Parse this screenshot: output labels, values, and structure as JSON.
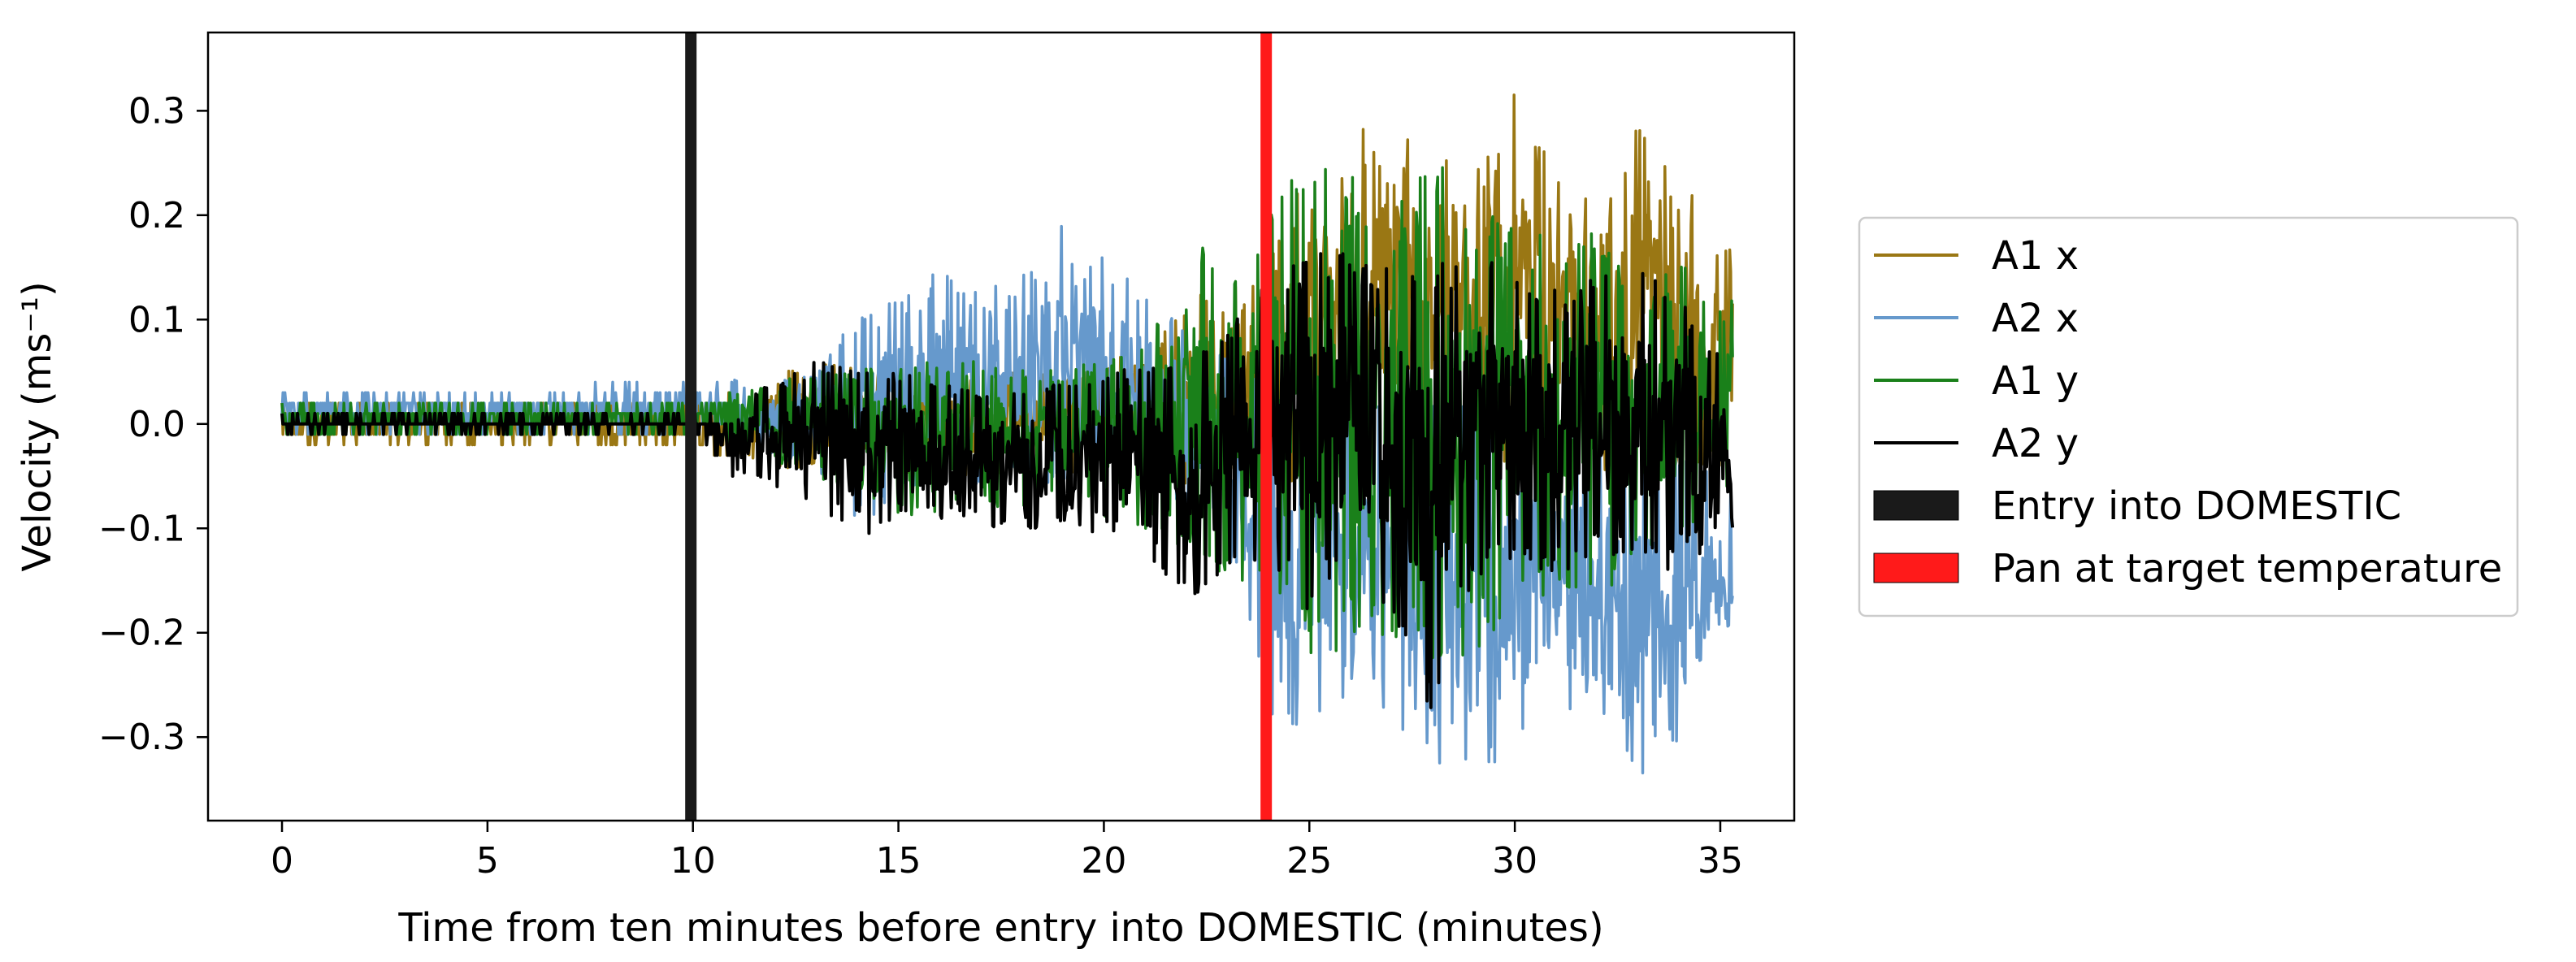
{
  "chart_data": {
    "type": "line",
    "xlabel": "Time from ten minutes before entry into DOMESTIC (minutes)",
    "ylabel": "Velocity (ms⁻¹)",
    "xlim": [
      -1.8,
      36.8
    ],
    "ylim": [
      -0.38,
      0.375
    ],
    "xticks": [
      0,
      5,
      10,
      15,
      20,
      25,
      30,
      35
    ],
    "yticks": [
      -0.3,
      -0.2,
      -0.1,
      0.0,
      0.1,
      0.2,
      0.3
    ],
    "xtick_labels": [
      "0",
      "5",
      "10",
      "15",
      "20",
      "25",
      "30",
      "35"
    ],
    "ytick_labels": [
      "−0.3",
      "−0.2",
      "−0.1",
      "0.0",
      "0.1",
      "0.2",
      "0.3"
    ],
    "grid": false,
    "legend_position": "right-outside",
    "x_end": 35.3,
    "series": [
      {
        "name": "A1 x",
        "color": "#9a7714",
        "envelope": {
          "x": [
            0,
            10,
            13,
            15,
            17,
            19,
            21,
            22,
            24,
            25,
            26,
            27,
            28,
            29,
            30,
            31,
            32,
            33,
            34,
            35.3
          ],
          "high": [
            0.02,
            0.02,
            0.06,
            0.05,
            0.05,
            0.05,
            0.07,
            0.12,
            0.15,
            0.26,
            0.28,
            0.3,
            0.25,
            0.26,
            0.34,
            0.24,
            0.26,
            0.29,
            0.24,
            0.17
          ],
          "low": [
            -0.02,
            -0.02,
            -0.05,
            -0.05,
            -0.05,
            -0.05,
            -0.07,
            -0.06,
            -0.05,
            -0.08,
            -0.06,
            -0.04,
            -0.04,
            -0.05,
            -0.04,
            -0.04,
            -0.05,
            -0.04,
            -0.04,
            -0.04
          ]
        }
      },
      {
        "name": "A2 x",
        "color": "#6699cc",
        "envelope": {
          "x": [
            0,
            10,
            13,
            14,
            15,
            16,
            17,
            18,
            19,
            20,
            21,
            22,
            23,
            24,
            25,
            26,
            27,
            28,
            29,
            30,
            31,
            32,
            33,
            34,
            35.3
          ],
          "high": [
            0.03,
            0.04,
            0.05,
            0.11,
            0.12,
            0.15,
            0.13,
            0.14,
            0.2,
            0.16,
            0.13,
            0.09,
            0.07,
            0.05,
            0.03,
            0.02,
            0.02,
            0.02,
            0.02,
            0.01,
            0.0,
            0.0,
            -0.02,
            -0.04,
            -0.08
          ],
          "low": [
            -0.01,
            -0.01,
            -0.04,
            -0.1,
            -0.07,
            -0.06,
            -0.06,
            -0.05,
            -0.06,
            -0.05,
            -0.06,
            -0.08,
            -0.12,
            -0.28,
            -0.3,
            -0.28,
            -0.3,
            -0.33,
            -0.35,
            -0.3,
            -0.3,
            -0.32,
            -0.35,
            -0.32,
            -0.22
          ]
        }
      },
      {
        "name": "A1 y",
        "color": "#1a801a",
        "envelope": {
          "x": [
            0,
            10,
            13,
            15,
            17,
            19,
            21,
            22,
            23,
            24,
            25,
            26,
            27,
            28,
            29,
            30,
            31,
            32,
            33,
            34,
            35.3
          ],
          "high": [
            0.02,
            0.02,
            0.05,
            0.06,
            0.06,
            0.05,
            0.08,
            0.18,
            0.17,
            0.21,
            0.26,
            0.24,
            0.21,
            0.26,
            0.21,
            0.2,
            0.18,
            0.2,
            0.13,
            0.16,
            0.12
          ],
          "low": [
            -0.01,
            -0.01,
            -0.05,
            -0.09,
            -0.08,
            -0.08,
            -0.1,
            -0.12,
            -0.15,
            -0.16,
            -0.24,
            -0.22,
            -0.2,
            -0.25,
            -0.22,
            -0.2,
            -0.15,
            -0.18,
            -0.12,
            -0.12,
            -0.07
          ]
        }
      },
      {
        "name": "A2 y",
        "color": "#000000",
        "envelope": {
          "x": [
            0,
            10,
            11,
            13,
            14,
            15,
            17,
            19,
            21,
            22,
            23,
            24,
            25,
            26,
            27,
            28,
            29,
            30,
            31,
            32,
            33,
            34,
            35.3
          ],
          "high": [
            0.01,
            0.01,
            0.02,
            0.06,
            0.06,
            0.05,
            0.03,
            0.04,
            0.06,
            0.05,
            0.1,
            0.16,
            0.16,
            0.18,
            0.16,
            0.15,
            0.17,
            0.14,
            0.13,
            0.14,
            0.15,
            0.12,
            0.05
          ],
          "low": [
            -0.01,
            -0.01,
            -0.05,
            -0.08,
            -0.11,
            -0.1,
            -0.1,
            -0.1,
            -0.12,
            -0.19,
            -0.14,
            -0.13,
            -0.18,
            -0.16,
            -0.18,
            -0.28,
            -0.15,
            -0.13,
            -0.15,
            -0.12,
            -0.14,
            -0.14,
            -0.1
          ]
        }
      }
    ],
    "vlines": [
      {
        "name": "Entry into DOMESTIC",
        "x": 9.95,
        "color": "#1a1a1a"
      },
      {
        "name": "Pan at target temperature",
        "x": 23.95,
        "color": "#ff1a1a"
      }
    ]
  }
}
